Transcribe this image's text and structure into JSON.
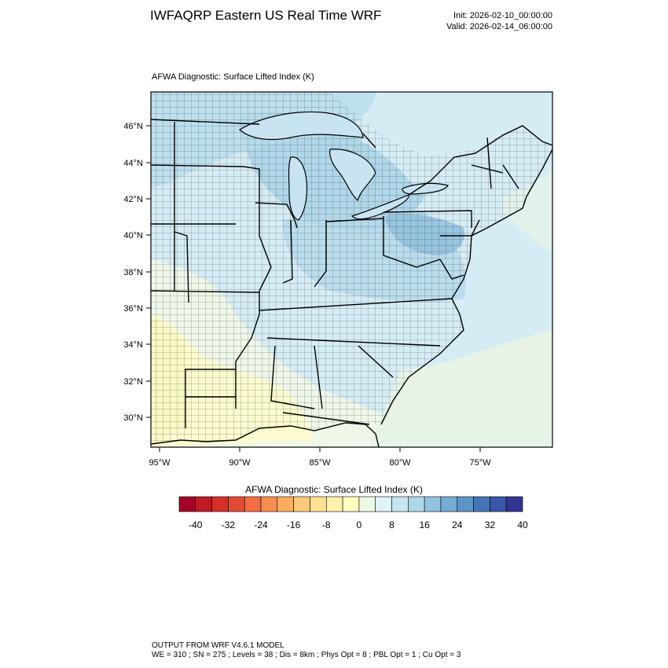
{
  "header": {
    "title": "IWFAQRP Eastern US Real Time WRF",
    "init": "Init: 2026-02-10_00:00:00",
    "valid": "Valid: 2026-02-14_06:00:00"
  },
  "plot": {
    "field_title": "AFWA Diagnostic: Surface Lifted Index   (K)",
    "lat_labels": [
      "46°N",
      "44°N",
      "42°N",
      "40°N",
      "38°N",
      "36°N",
      "34°N",
      "32°N",
      "30°N"
    ],
    "lon_labels": [
      "95°W",
      "90°W",
      "85°W",
      "80°W",
      "75°W"
    ]
  },
  "colorbar": {
    "title": "AFWA Diagnostic: Surface Lifted Index  (K)",
    "colors": [
      "#a50026",
      "#c01a27",
      "#d73027",
      "#e34a33",
      "#f46d43",
      "#f88d52",
      "#fdae61",
      "#fec97a",
      "#fee090",
      "#fef1ab",
      "#ffffbf",
      "#eef8e4",
      "#e0f3f8",
      "#c6e6f0",
      "#abd9e9",
      "#91c3de",
      "#74add1",
      "#5e93c5",
      "#4575b4",
      "#3a56a6",
      "#313695"
    ],
    "labels": [
      "-40",
      "-32",
      "-24",
      "-16",
      "-8",
      "0",
      "8",
      "16",
      "24",
      "32",
      "40"
    ]
  },
  "footer": {
    "line1": "OUTPUT FROM WRF V4.6.1 MODEL",
    "line2": "WE = 310 ; SN = 275 ; Levels = 38 ; Dis = 8km ; Phys Opt = 8 ; PBL Opt = 1 ; Cu Opt = 3"
  }
}
